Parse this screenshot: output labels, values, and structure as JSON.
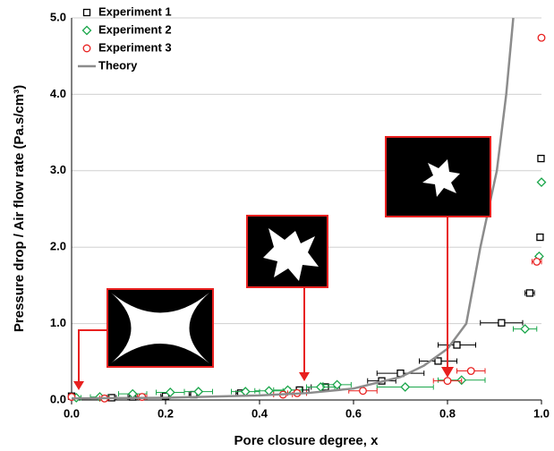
{
  "chart_data": {
    "type": "scatter",
    "x_label": "Pore closure degree, x",
    "y_label": "Pressure drop / Air flow rate (Pa.s/cm³)",
    "xlim": [
      0,
      1
    ],
    "ylim": [
      0,
      5
    ],
    "xticks": [
      {
        "value": 0,
        "label": "0.0"
      },
      0.2,
      0.4,
      0.6,
      0.8,
      {
        "value": 1,
        "label": "1.0"
      }
    ],
    "yticks": [
      {
        "value": 0,
        "label": "0.0"
      },
      {
        "value": 1,
        "label": "1.0"
      },
      {
        "value": 2,
        "label": "2.0"
      },
      {
        "value": 3,
        "label": "3.0"
      },
      {
        "value": 4,
        "label": "4.0"
      },
      {
        "value": 5,
        "label": "5.0"
      }
    ],
    "grid": true,
    "legend": "upper left",
    "series": [
      {
        "name": "Experiment 1",
        "color": "#000000",
        "marker": "square",
        "x": [
          0.0,
          0.085,
          0.13,
          0.2,
          0.26,
          0.36,
          0.485,
          0.54,
          0.66,
          0.7,
          0.78,
          0.82,
          0.915,
          0.975,
          0.997,
          0.999
        ],
        "values": [
          0.05,
          0.03,
          0.04,
          0.05,
          0.07,
          0.09,
          0.13,
          0.17,
          0.25,
          0.35,
          0.51,
          0.72,
          1.01,
          1.4,
          2.13,
          3.16
        ],
        "xerr": [
          0.005,
          0.01,
          0.01,
          0.01,
          0.01,
          0.01,
          0.02,
          0.03,
          0.03,
          0.05,
          0.04,
          0.04,
          0.045,
          0.01,
          0.003,
          0.002
        ]
      },
      {
        "name": "Experiment 2",
        "color": "#1aa64a",
        "marker": "diamond",
        "x": [
          0.01,
          0.06,
          0.13,
          0.21,
          0.27,
          0.37,
          0.42,
          0.46,
          0.53,
          0.565,
          0.71,
          0.83,
          0.965,
          0.995,
          1.0
        ],
        "values": [
          0.03,
          0.04,
          0.08,
          0.1,
          0.11,
          0.11,
          0.12,
          0.13,
          0.17,
          0.2,
          0.17,
          0.26,
          0.93,
          1.88,
          2.85
        ],
        "xerr": [
          0.01,
          0.02,
          0.03,
          0.03,
          0.03,
          0.03,
          0.03,
          0.03,
          0.03,
          0.03,
          0.06,
          0.05,
          0.025,
          0.005,
          0.002
        ]
      },
      {
        "name": "Experiment 3",
        "color": "#e8201f",
        "marker": "circle",
        "x": [
          0.0,
          0.07,
          0.15,
          0.45,
          0.48,
          0.62,
          0.8,
          0.85,
          0.99,
          1.0
        ],
        "values": [
          0.04,
          0.02,
          0.04,
          0.07,
          0.09,
          0.12,
          0.25,
          0.38,
          1.81,
          4.74
        ],
        "xerr": [
          0.005,
          0.01,
          0.01,
          0.02,
          0.02,
          0.03,
          0.03,
          0.03,
          0.01,
          0.002
        ]
      },
      {
        "name": "Theory",
        "color": "#8c8c8c",
        "marker": "line",
        "x": [
          0,
          0.2,
          0.4,
          0.5,
          0.6,
          0.7,
          0.75,
          0.8,
          0.84,
          0.87,
          0.905,
          0.925,
          0.94
        ],
        "values": [
          0.02,
          0.03,
          0.06,
          0.09,
          0.15,
          0.3,
          0.45,
          0.67,
          1.0,
          2.0,
          3.0,
          4.0,
          5.0
        ]
      }
    ]
  }
}
